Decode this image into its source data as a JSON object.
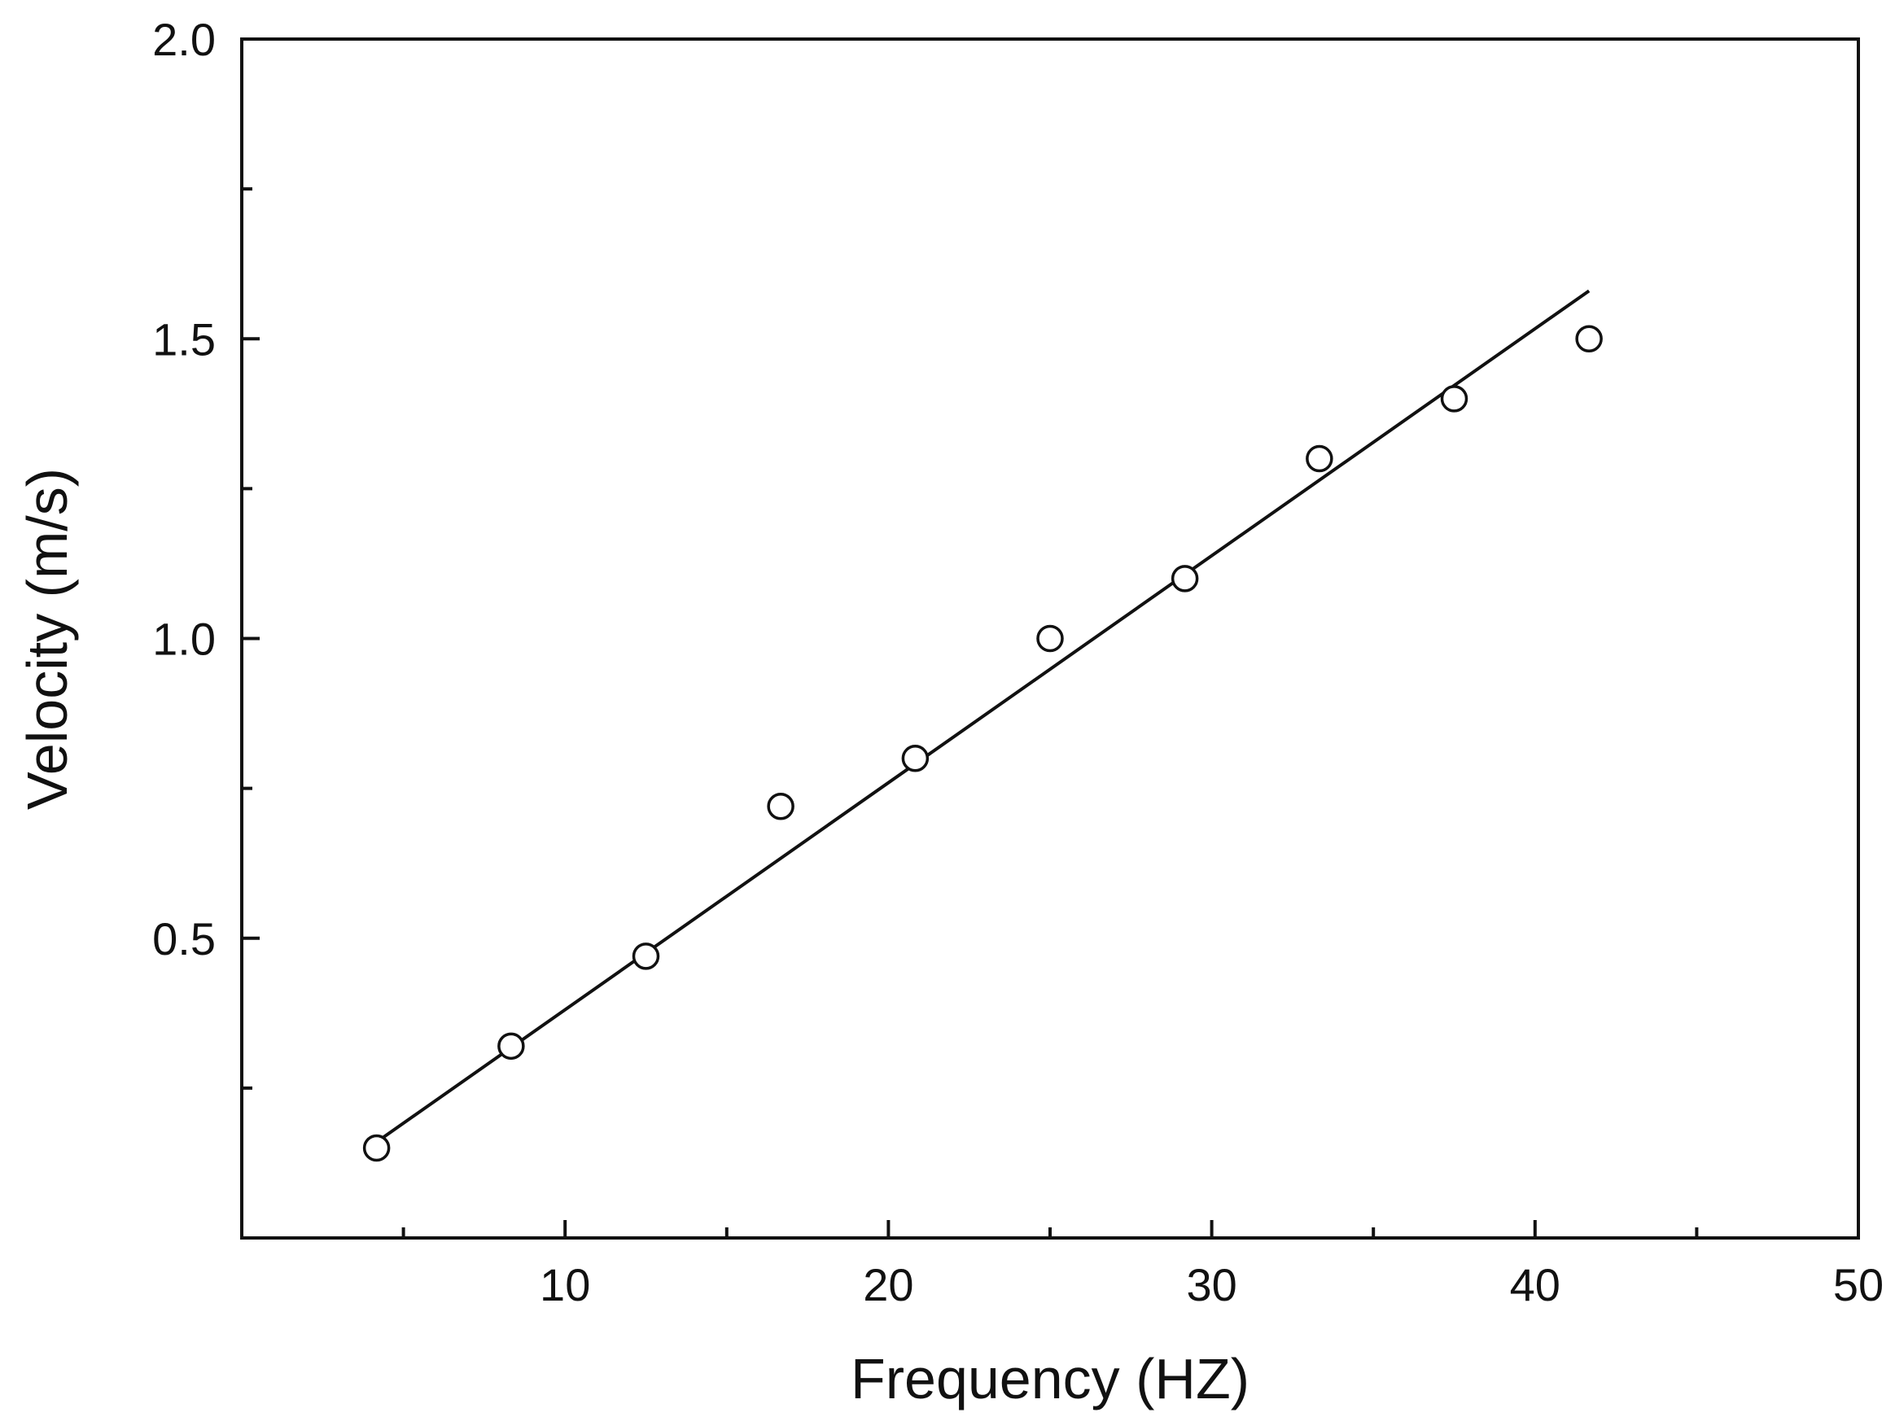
{
  "chart_data": {
    "type": "scatter",
    "title": "",
    "xlabel": "Frequency (HZ)",
    "ylabel": "Velocity (m/s)",
    "xlim": [
      0,
      50
    ],
    "ylim": [
      0,
      2.0
    ],
    "x_ticks": [
      10,
      20,
      30,
      40,
      50
    ],
    "x_tick_labels": [
      "10",
      "20",
      "30",
      "40",
      "50"
    ],
    "x_minor_ticks": [
      5,
      15,
      25,
      35,
      45
    ],
    "y_ticks": [
      0.5,
      1.0,
      1.5,
      2.0
    ],
    "y_tick_labels": [
      "0.5",
      "1.0",
      "1.5",
      "2.0"
    ],
    "y_minor_ticks": [
      0.25,
      0.75,
      1.25,
      1.75
    ],
    "grid": false,
    "legend": "none",
    "series": [
      {
        "type": "scatter",
        "marker": "open-circle",
        "x": [
          4.17,
          8.33,
          12.5,
          16.67,
          20.83,
          25.0,
          29.17,
          33.33,
          37.5,
          41.67
        ],
        "y": [
          0.15,
          0.32,
          0.47,
          0.72,
          0.8,
          1.0,
          1.1,
          1.3,
          1.4,
          1.5
        ]
      },
      {
        "type": "line",
        "style": "linear-fit",
        "x": [
          4.17,
          41.67
        ],
        "y": [
          0.16,
          1.58
        ]
      }
    ]
  }
}
